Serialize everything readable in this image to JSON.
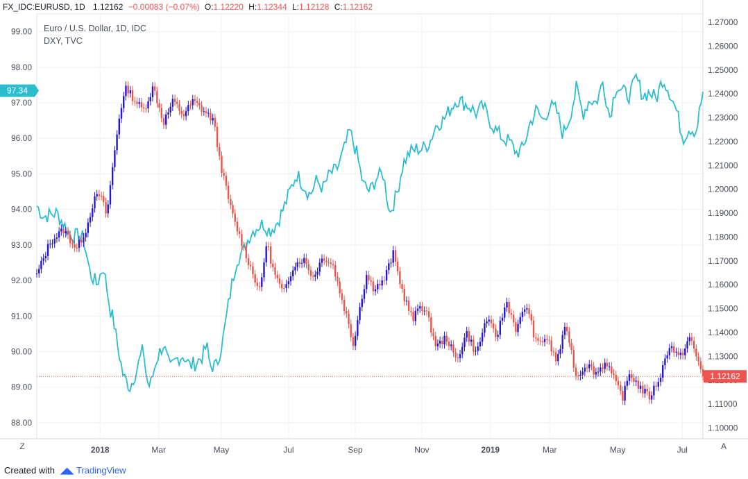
{
  "header": {
    "symbol": "FX_IDC:EURUSD, 1D",
    "last": "1.12162",
    "change": "−0.00083 (−0.07%)",
    "o_label": "O:",
    "o": "1.12220",
    "h_label": "H:",
    "h": "1.12344",
    "l_label": "L:",
    "l": "1.12128",
    "c_label": "C:",
    "c": "1.12162",
    "up_color": "#26a69a",
    "down_color": "#ef5350"
  },
  "legend": {
    "main": "Euro / U.S. Dollar, 1D, IDC",
    "overlay": "DXY, TVC"
  },
  "footer": {
    "created_with": "Created with",
    "brand": "TradingView"
  },
  "controls": {
    "z": "Z",
    "a": "A"
  },
  "chart_data": {
    "type": "line",
    "left_axis": {
      "series": "DXY",
      "range": [
        87.55,
        99.5
      ],
      "ticks": [
        "99.00",
        "98.00",
        "97.00",
        "96.00",
        "95.00",
        "94.00",
        "93.00",
        "92.00",
        "91.00",
        "90.00",
        "89.00",
        "88.00"
      ],
      "last_value": "97.34"
    },
    "right_axis": {
      "series": "EURUSD",
      "range": [
        1.0955,
        1.2735
      ],
      "ticks": [
        "1.27000",
        "1.26000",
        "1.25000",
        "1.24000",
        "1.23000",
        "1.22000",
        "1.21000",
        "1.20000",
        "1.19000",
        "1.18000",
        "1.17000",
        "1.16000",
        "1.15000",
        "1.14000",
        "1.13000",
        "1.12000",
        "1.11000",
        "1.10000"
      ],
      "last_value": "1.12162"
    },
    "x_ticks": [
      {
        "label": "2018",
        "bold": true,
        "t": 0.095
      },
      {
        "label": "Mar",
        "bold": false,
        "t": 0.183
      },
      {
        "label": "May",
        "bold": false,
        "t": 0.277
      },
      {
        "label": "Jul",
        "bold": false,
        "t": 0.378
      },
      {
        "label": "Sep",
        "bold": false,
        "t": 0.478
      },
      {
        "label": "Nov",
        "bold": false,
        "t": 0.578
      },
      {
        "label": "2019",
        "bold": true,
        "t": 0.681
      },
      {
        "label": "Mar",
        "bold": false,
        "t": 0.77
      },
      {
        "label": "May",
        "bold": false,
        "t": 0.872
      },
      {
        "label": "Jul",
        "bold": false,
        "t": 0.969
      }
    ],
    "eurusd": {
      "name": "EURUSD",
      "color_up": "#2515d6",
      "color_down": "#e8554a",
      "t": [
        0.0,
        0.02,
        0.04,
        0.06,
        0.075,
        0.085,
        0.095,
        0.105,
        0.115,
        0.125,
        0.135,
        0.145,
        0.16,
        0.175,
        0.19,
        0.205,
        0.22,
        0.235,
        0.25,
        0.265,
        0.275,
        0.285,
        0.295,
        0.305,
        0.32,
        0.335,
        0.345,
        0.355,
        0.37,
        0.385,
        0.4,
        0.415,
        0.43,
        0.445,
        0.455,
        0.465,
        0.475,
        0.485,
        0.495,
        0.505,
        0.52,
        0.535,
        0.55,
        0.565,
        0.575,
        0.585,
        0.6,
        0.615,
        0.63,
        0.645,
        0.66,
        0.675,
        0.69,
        0.705,
        0.72,
        0.735,
        0.75,
        0.765,
        0.78,
        0.795,
        0.81,
        0.825,
        0.84,
        0.855,
        0.87,
        0.88,
        0.89,
        0.905,
        0.92,
        0.935,
        0.95,
        0.965,
        0.98,
        1.0
      ],
      "values": [
        1.164,
        1.178,
        1.183,
        1.175,
        1.184,
        1.195,
        1.198,
        1.189,
        1.212,
        1.233,
        1.243,
        1.238,
        1.233,
        1.243,
        1.228,
        1.237,
        1.231,
        1.237,
        1.233,
        1.229,
        1.212,
        1.199,
        1.188,
        1.18,
        1.168,
        1.157,
        1.178,
        1.166,
        1.156,
        1.168,
        1.171,
        1.163,
        1.172,
        1.168,
        1.157,
        1.147,
        1.135,
        1.151,
        1.164,
        1.159,
        1.161,
        1.173,
        1.156,
        1.145,
        1.152,
        1.148,
        1.134,
        1.138,
        1.128,
        1.14,
        1.131,
        1.146,
        1.138,
        1.153,
        1.141,
        1.152,
        1.135,
        1.138,
        1.128,
        1.143,
        1.121,
        1.127,
        1.123,
        1.128,
        1.118,
        1.113,
        1.123,
        1.117,
        1.113,
        1.121,
        1.135,
        1.129,
        1.138,
        1.122
      ]
    },
    "dxy": {
      "name": "DXY",
      "color": "#2bbcd0",
      "t": [
        0.0,
        0.01,
        0.03,
        0.05,
        0.07,
        0.08,
        0.09,
        0.1,
        0.11,
        0.115,
        0.12,
        0.125,
        0.13,
        0.14,
        0.15,
        0.16,
        0.165,
        0.17,
        0.18,
        0.19,
        0.2,
        0.21,
        0.22,
        0.23,
        0.24,
        0.25,
        0.255,
        0.26,
        0.27,
        0.28,
        0.29,
        0.295,
        0.3,
        0.31,
        0.32,
        0.33,
        0.34,
        0.35,
        0.36,
        0.37,
        0.38,
        0.39,
        0.4,
        0.41,
        0.42,
        0.43,
        0.44,
        0.45,
        0.46,
        0.47,
        0.48,
        0.49,
        0.5,
        0.51,
        0.52,
        0.53,
        0.54,
        0.55,
        0.56,
        0.57,
        0.58,
        0.59,
        0.6,
        0.61,
        0.62,
        0.63,
        0.64,
        0.65,
        0.66,
        0.67,
        0.68,
        0.69,
        0.7,
        0.71,
        0.72,
        0.73,
        0.74,
        0.75,
        0.76,
        0.77,
        0.78,
        0.79,
        0.8,
        0.81,
        0.82,
        0.83,
        0.84,
        0.85,
        0.86,
        0.87,
        0.88,
        0.89,
        0.9,
        0.91,
        0.92,
        0.93,
        0.94,
        0.95,
        0.96,
        0.97,
        0.98,
        0.99,
        1.0
      ],
      "values": [
        94.1,
        93.8,
        93.9,
        93.3,
        93.2,
        92.2,
        91.9,
        92.4,
        91.2,
        90.9,
        90.3,
        89.8,
        89.3,
        89.0,
        89.5,
        90.1,
        89.2,
        89.0,
        89.8,
        90.2,
        89.5,
        89.8,
        89.9,
        89.6,
        89.7,
        89.9,
        90.2,
        89.6,
        89.6,
        90.4,
        91.6,
        92.1,
        92.6,
        92.8,
        93.3,
        93.5,
        93.6,
        93.4,
        93.6,
        94.0,
        94.5,
        95.0,
        94.7,
        94.4,
        94.8,
        94.6,
        95.0,
        95.1,
        95.6,
        96.2,
        95.6,
        94.7,
        94.5,
        94.9,
        95.0,
        93.9,
        94.4,
        95.3,
        95.6,
        95.7,
        95.7,
        95.9,
        96.4,
        96.5,
        96.8,
        97.1,
        97.0,
        96.9,
        96.7,
        96.9,
        96.5,
        96.2,
        96.0,
        95.9,
        95.6,
        95.7,
        96.4,
        96.8,
        96.5,
        96.9,
        96.8,
        96.1,
        96.6,
        97.4,
        96.7,
        97.1,
        97.0,
        97.6,
        96.6,
        97.5,
        97.3,
        97.2,
        97.7,
        97.2,
        97.3,
        97.1,
        97.7,
        97.3,
        96.8,
        96.0,
        96.3,
        96.2,
        97.3
      ]
    }
  }
}
